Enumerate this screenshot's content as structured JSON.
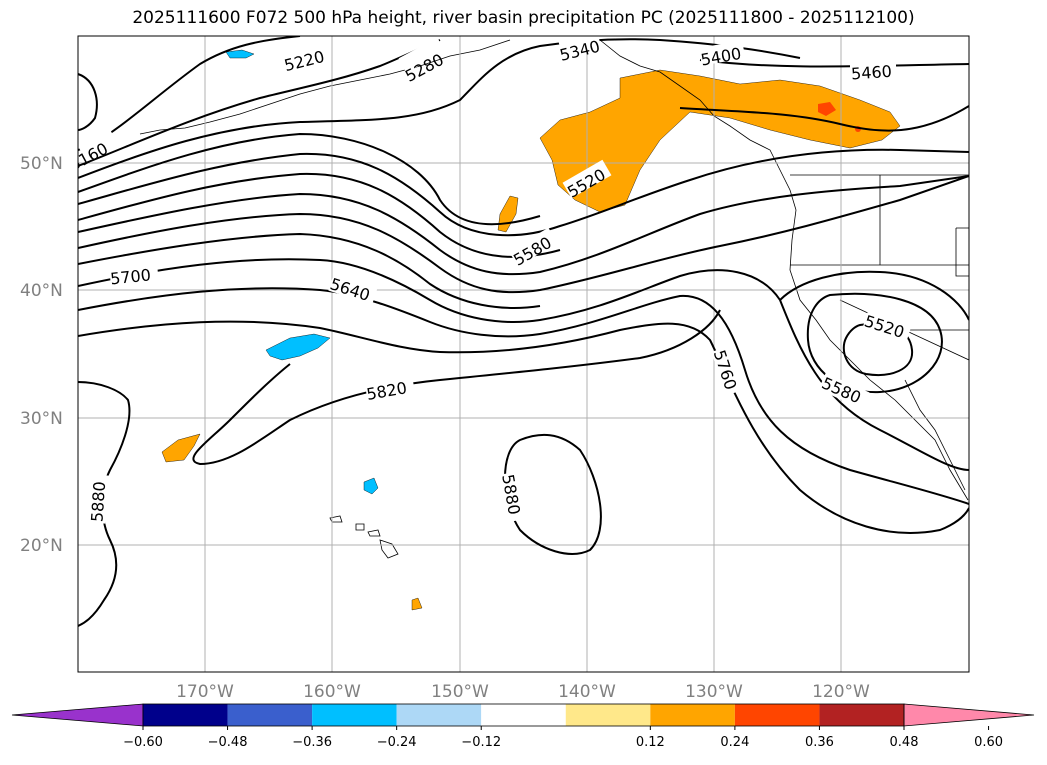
{
  "title": "2025111600 F072 500 hPa height, river basin precipitation PC (2025111800 - 2025112100)",
  "latitude_labels": [
    "50°N",
    "40°N",
    "30°N",
    "20°N"
  ],
  "longitude_labels": [
    "170°W",
    "160°W",
    "150°W",
    "140°W",
    "130°W",
    "120°W"
  ],
  "contour_labels": [
    "5220",
    "5340",
    "5400",
    "5460",
    "5520",
    "5580",
    "5640",
    "5700",
    "5760",
    "5820",
    "5880",
    "5880",
    "5520",
    "5580",
    "5280",
    "5160"
  ],
  "colorbar": {
    "ticks": [
      "−0.60",
      "−0.48",
      "−0.36",
      "−0.24",
      "−0.12",
      "0.12",
      "0.24",
      "0.36",
      "0.48",
      "0.60"
    ],
    "colors": [
      "#9932cc",
      "#00008b",
      "#3a5fcd",
      "#00bfff",
      "#add8f6",
      "#ffffff",
      "#ffe88a",
      "#ffa500",
      "#ff4500",
      "#b22222",
      "#ff88aa"
    ]
  },
  "fills": {
    "positive": "#ffa500",
    "strong_positive": "#ff4500",
    "negative": "#00bfff"
  }
}
